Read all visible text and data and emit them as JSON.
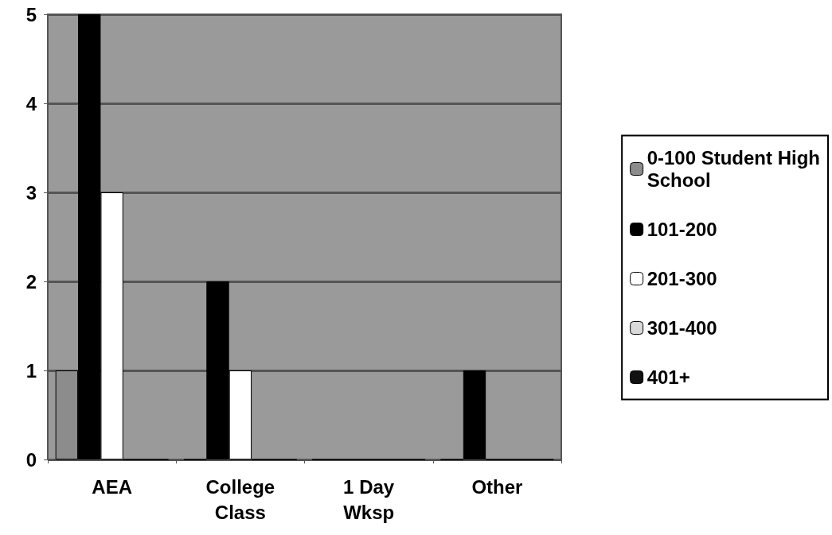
{
  "chart_data": {
    "type": "bar",
    "categories": [
      "AEA",
      "College\nClass",
      "1 Day\nWksp",
      "Other"
    ],
    "series": [
      {
        "name": "0-100 Student High\nSchool",
        "color": "#8c8c8c",
        "values": [
          1,
          0,
          0,
          0
        ]
      },
      {
        "name": "101-200",
        "color": "#000000",
        "values": [
          5,
          2,
          0,
          1
        ]
      },
      {
        "name": "201-300",
        "color": "#ffffff",
        "values": [
          3,
          1,
          0,
          0
        ]
      },
      {
        "name": "301-400",
        "color": "#d9d9d9",
        "values": [
          0,
          0,
          0,
          0
        ]
      },
      {
        "name": "401+",
        "color": "#111111",
        "values": [
          0,
          0,
          0,
          0
        ]
      }
    ],
    "ylim": [
      0,
      5
    ],
    "yticks": [
      0,
      1,
      2,
      3,
      4,
      5
    ],
    "grid": "y",
    "legend": "right"
  }
}
